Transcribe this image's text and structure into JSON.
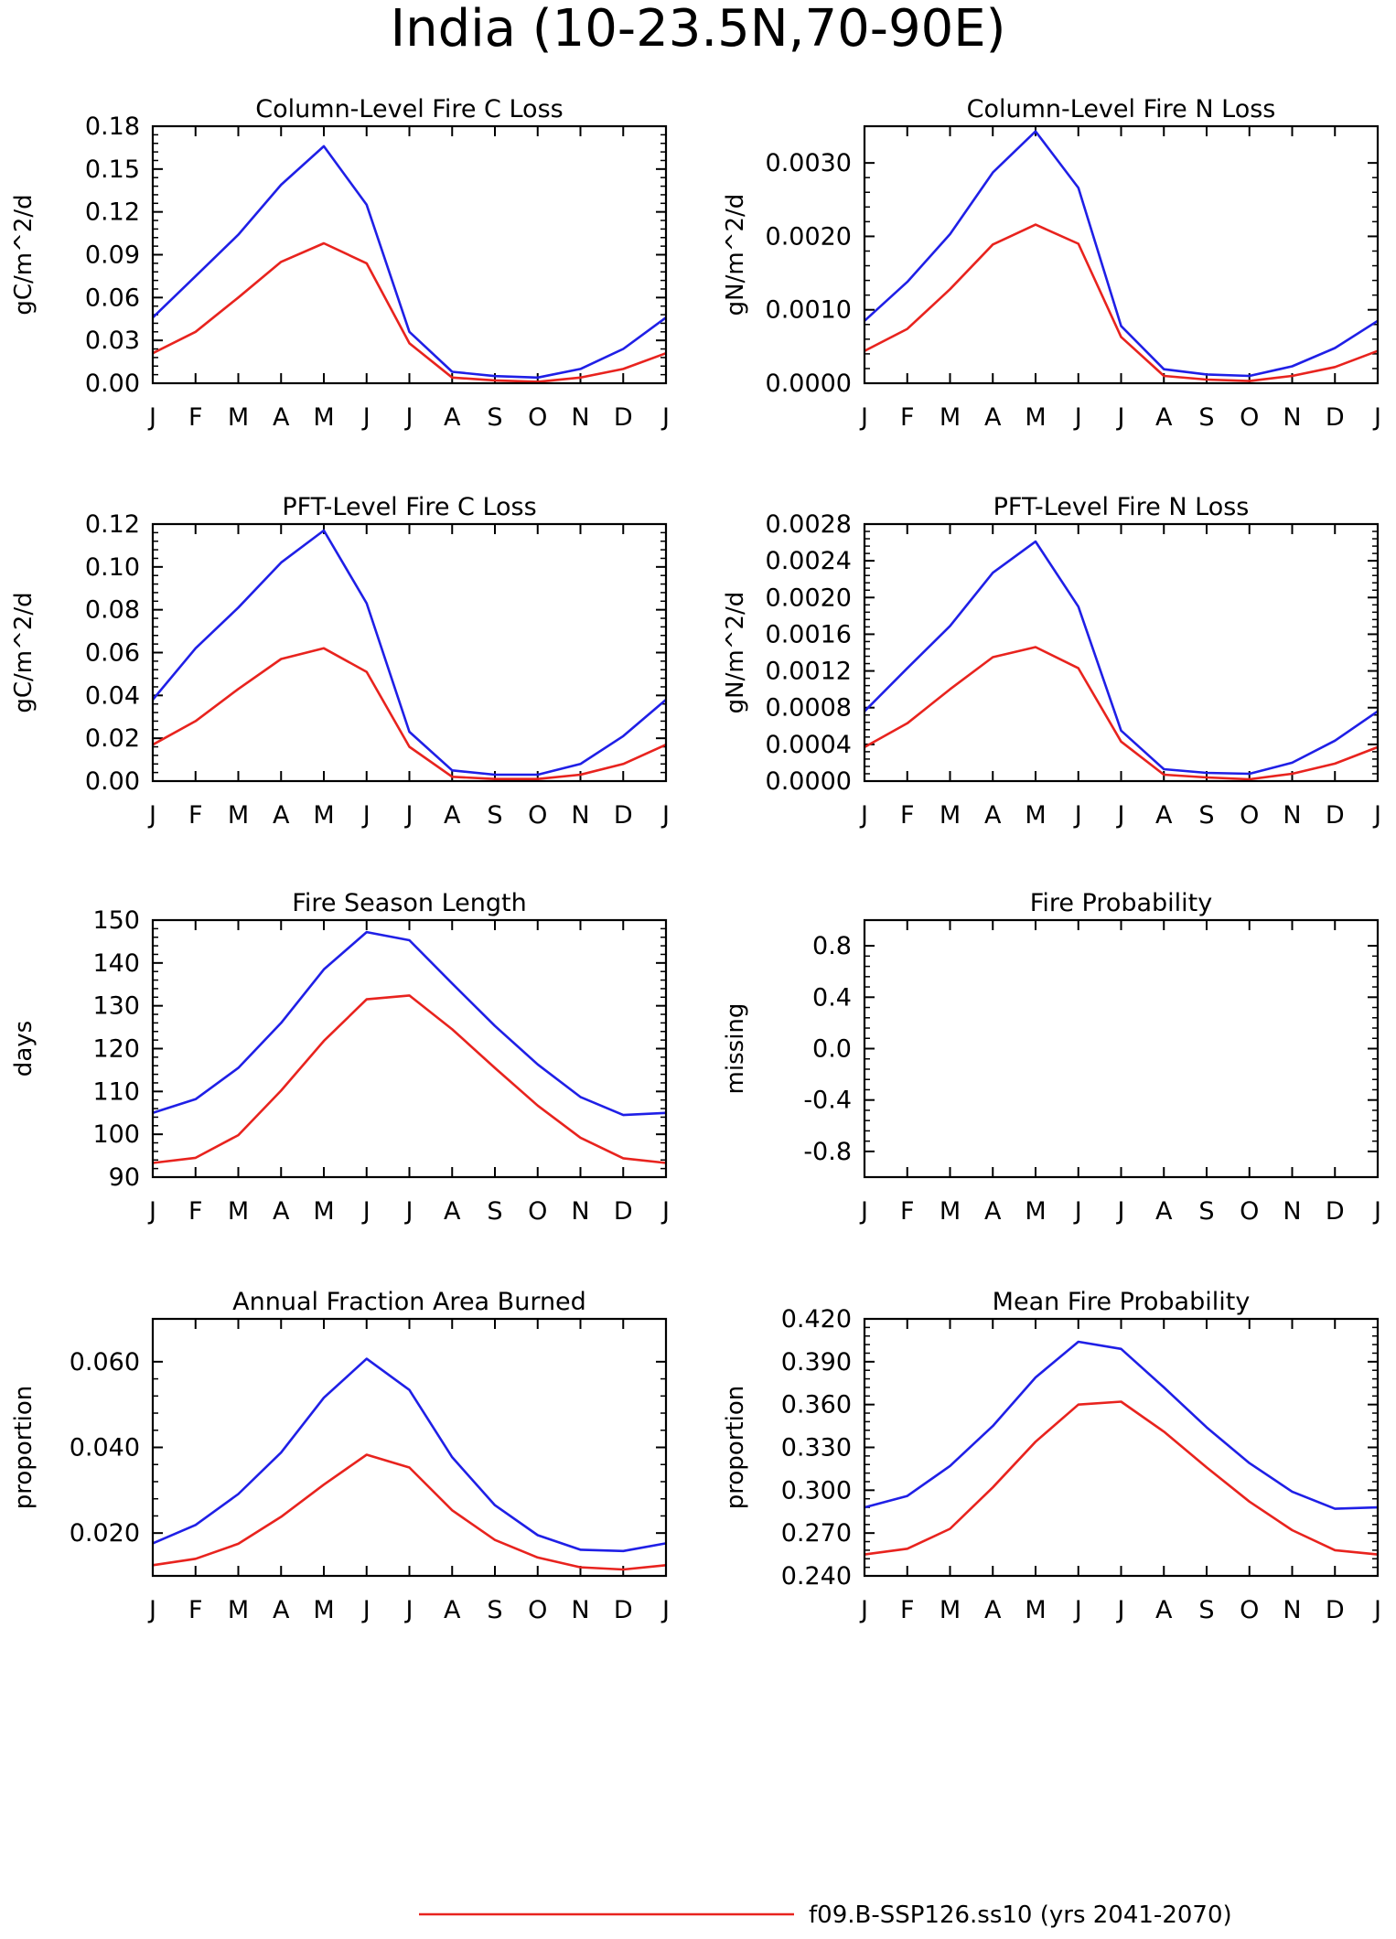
{
  "figure": {
    "title": "India (10-23.5N,70-90E)",
    "legend": {
      "entries": [
        {
          "label": "f09.B-SSP126.ss10 (yrs 2041-2070)",
          "color": "#e8231e"
        }
      ]
    },
    "colors": {
      "blue": "#1f1fe6",
      "red": "#e8231e"
    }
  },
  "chart_data": [
    {
      "type": "line",
      "title": "Column-Level Fire C Loss",
      "ylabel": "gC/m^2/d",
      "xlabel": "",
      "categories": [
        "J",
        "F",
        "M",
        "A",
        "M",
        "J",
        "J",
        "A",
        "S",
        "O",
        "N",
        "D",
        "J"
      ],
      "ylim": [
        0,
        0.18
      ],
      "yticks": [
        "0.00",
        "0.03",
        "0.06",
        "0.09",
        "0.12",
        "0.15",
        "0.18"
      ],
      "series": [
        {
          "color": "#1f1fe6",
          "values": [
            0.046,
            0.075,
            0.104,
            0.139,
            0.166,
            0.125,
            0.036,
            0.008,
            0.005,
            0.004,
            0.01,
            0.024,
            0.046
          ]
        },
        {
          "color": "#e8231e",
          "values": [
            0.021,
            0.036,
            0.06,
            0.085,
            0.098,
            0.084,
            0.028,
            0.004,
            0.002,
            0.001,
            0.004,
            0.01,
            0.021
          ]
        }
      ]
    },
    {
      "type": "line",
      "title": "Column-Level Fire N Loss",
      "ylabel": "gN/m^2/d",
      "xlabel": "",
      "categories": [
        "J",
        "F",
        "M",
        "A",
        "M",
        "J",
        "J",
        "A",
        "S",
        "O",
        "N",
        "D",
        "J"
      ],
      "ylim": [
        0,
        0.0035
      ],
      "yticks": [
        "0.0000",
        "0.0010",
        "0.0020",
        "0.0030"
      ],
      "series": [
        {
          "color": "#1f1fe6",
          "values": [
            0.00085,
            0.00138,
            0.00203,
            0.00287,
            0.00343,
            0.00266,
            0.00078,
            0.00019,
            0.00012,
            0.0001,
            0.00023,
            0.00048,
            0.00085
          ]
        },
        {
          "color": "#e8231e",
          "values": [
            0.00044,
            0.00074,
            0.00128,
            0.00189,
            0.00216,
            0.0019,
            0.00063,
            0.0001,
            5e-05,
            3e-05,
            0.0001,
            0.00022,
            0.00044
          ]
        }
      ]
    },
    {
      "type": "line",
      "title": "PFT-Level Fire C Loss",
      "ylabel": "gC/m^2/d",
      "xlabel": "",
      "categories": [
        "J",
        "F",
        "M",
        "A",
        "M",
        "J",
        "J",
        "A",
        "S",
        "O",
        "N",
        "D",
        "J"
      ],
      "ylim": [
        0,
        0.12
      ],
      "yticks": [
        "0.00",
        "0.02",
        "0.04",
        "0.06",
        "0.08",
        "0.10",
        "0.12"
      ],
      "series": [
        {
          "color": "#1f1fe6",
          "values": [
            0.038,
            0.062,
            0.081,
            0.102,
            0.117,
            0.083,
            0.023,
            0.005,
            0.003,
            0.003,
            0.008,
            0.021,
            0.038
          ]
        },
        {
          "color": "#e8231e",
          "values": [
            0.017,
            0.028,
            0.043,
            0.057,
            0.062,
            0.051,
            0.016,
            0.002,
            0.001,
            0.001,
            0.003,
            0.008,
            0.017
          ]
        }
      ]
    },
    {
      "type": "line",
      "title": "PFT-Level Fire N Loss",
      "ylabel": "gN/m^2/d",
      "xlabel": "",
      "categories": [
        "J",
        "F",
        "M",
        "A",
        "M",
        "J",
        "J",
        "A",
        "S",
        "O",
        "N",
        "D",
        "J"
      ],
      "ylim": [
        0,
        0.0028
      ],
      "yticks": [
        "0.0000",
        "0.0004",
        "0.0008",
        "0.0012",
        "0.0016",
        "0.0020",
        "0.0024",
        "0.0028"
      ],
      "series": [
        {
          "color": "#1f1fe6",
          "values": [
            0.00076,
            0.00123,
            0.00169,
            0.00227,
            0.00261,
            0.0019,
            0.00055,
            0.00013,
            9e-05,
            8e-05,
            0.0002,
            0.00044,
            0.00076
          ]
        },
        {
          "color": "#e8231e",
          "values": [
            0.00037,
            0.00063,
            0.001,
            0.00135,
            0.00146,
            0.00123,
            0.00043,
            7e-05,
            4e-05,
            2e-05,
            8e-05,
            0.00019,
            0.00037
          ]
        }
      ]
    },
    {
      "type": "line",
      "title": "Fire Season Length",
      "ylabel": "days",
      "xlabel": "",
      "categories": [
        "J",
        "F",
        "M",
        "A",
        "M",
        "J",
        "J",
        "A",
        "S",
        "O",
        "N",
        "D",
        "J"
      ],
      "ylim": [
        90,
        150
      ],
      "yticks": [
        "90",
        "100",
        "110",
        "120",
        "130",
        "140",
        "150"
      ],
      "series": [
        {
          "color": "#1f1fe6",
          "values": [
            105.0,
            108.2,
            115.5,
            126.0,
            138.5,
            147.2,
            145.3,
            135.2,
            125.3,
            116.3,
            108.7,
            104.5,
            105.0
          ]
        },
        {
          "color": "#e8231e",
          "values": [
            93.3,
            94.5,
            99.8,
            110.2,
            121.8,
            131.5,
            132.4,
            124.5,
            115.5,
            106.7,
            99.2,
            94.4,
            93.3
          ]
        }
      ]
    },
    {
      "type": "line",
      "title": "Fire Probability",
      "ylabel": "missing",
      "xlabel": "",
      "categories": [
        "J",
        "F",
        "M",
        "A",
        "M",
        "J",
        "J",
        "A",
        "S",
        "O",
        "N",
        "D",
        "J"
      ],
      "ylim": [
        -1.0,
        1.0
      ],
      "yticks": [
        "-0.8",
        "-0.4",
        "0.0",
        "0.4",
        "0.8"
      ],
      "ytick_values": [
        -0.8,
        -0.4,
        0.0,
        0.4,
        0.8
      ],
      "series": []
    },
    {
      "type": "line",
      "title": "Annual Fraction Area Burned",
      "ylabel": "proportion",
      "xlabel": "",
      "categories": [
        "J",
        "F",
        "M",
        "A",
        "M",
        "J",
        "J",
        "A",
        "S",
        "O",
        "N",
        "D",
        "J"
      ],
      "ylim": [
        0.01,
        0.07
      ],
      "yticks": [
        "0.020",
        "0.040",
        "0.060"
      ],
      "ytick_values": [
        0.02,
        0.04,
        0.06
      ],
      "series": [
        {
          "color": "#1f1fe6",
          "values": [
            0.0176,
            0.0219,
            0.0291,
            0.0388,
            0.0516,
            0.0607,
            0.0534,
            0.0377,
            0.0265,
            0.0195,
            0.0161,
            0.0158,
            0.0176
          ]
        },
        {
          "color": "#e8231e",
          "values": [
            0.0125,
            0.014,
            0.0175,
            0.0238,
            0.0313,
            0.0383,
            0.0353,
            0.0253,
            0.0184,
            0.0143,
            0.012,
            0.0115,
            0.0125
          ]
        }
      ]
    },
    {
      "type": "line",
      "title": "Mean Fire Probability",
      "ylabel": "proportion",
      "xlabel": "",
      "categories": [
        "J",
        "F",
        "M",
        "A",
        "M",
        "J",
        "J",
        "A",
        "S",
        "O",
        "N",
        "D",
        "J"
      ],
      "ylim": [
        0.24,
        0.42
      ],
      "yticks": [
        "0.240",
        "0.270",
        "0.300",
        "0.330",
        "0.360",
        "0.390",
        "0.420"
      ],
      "series": [
        {
          "color": "#1f1fe6",
          "values": [
            0.288,
            0.296,
            0.317,
            0.345,
            0.379,
            0.404,
            0.399,
            0.372,
            0.344,
            0.319,
            0.299,
            0.287,
            0.288
          ]
        },
        {
          "color": "#e8231e",
          "values": [
            0.255,
            0.259,
            0.273,
            0.302,
            0.334,
            0.36,
            0.362,
            0.341,
            0.316,
            0.292,
            0.272,
            0.258,
            0.255
          ]
        }
      ]
    }
  ]
}
